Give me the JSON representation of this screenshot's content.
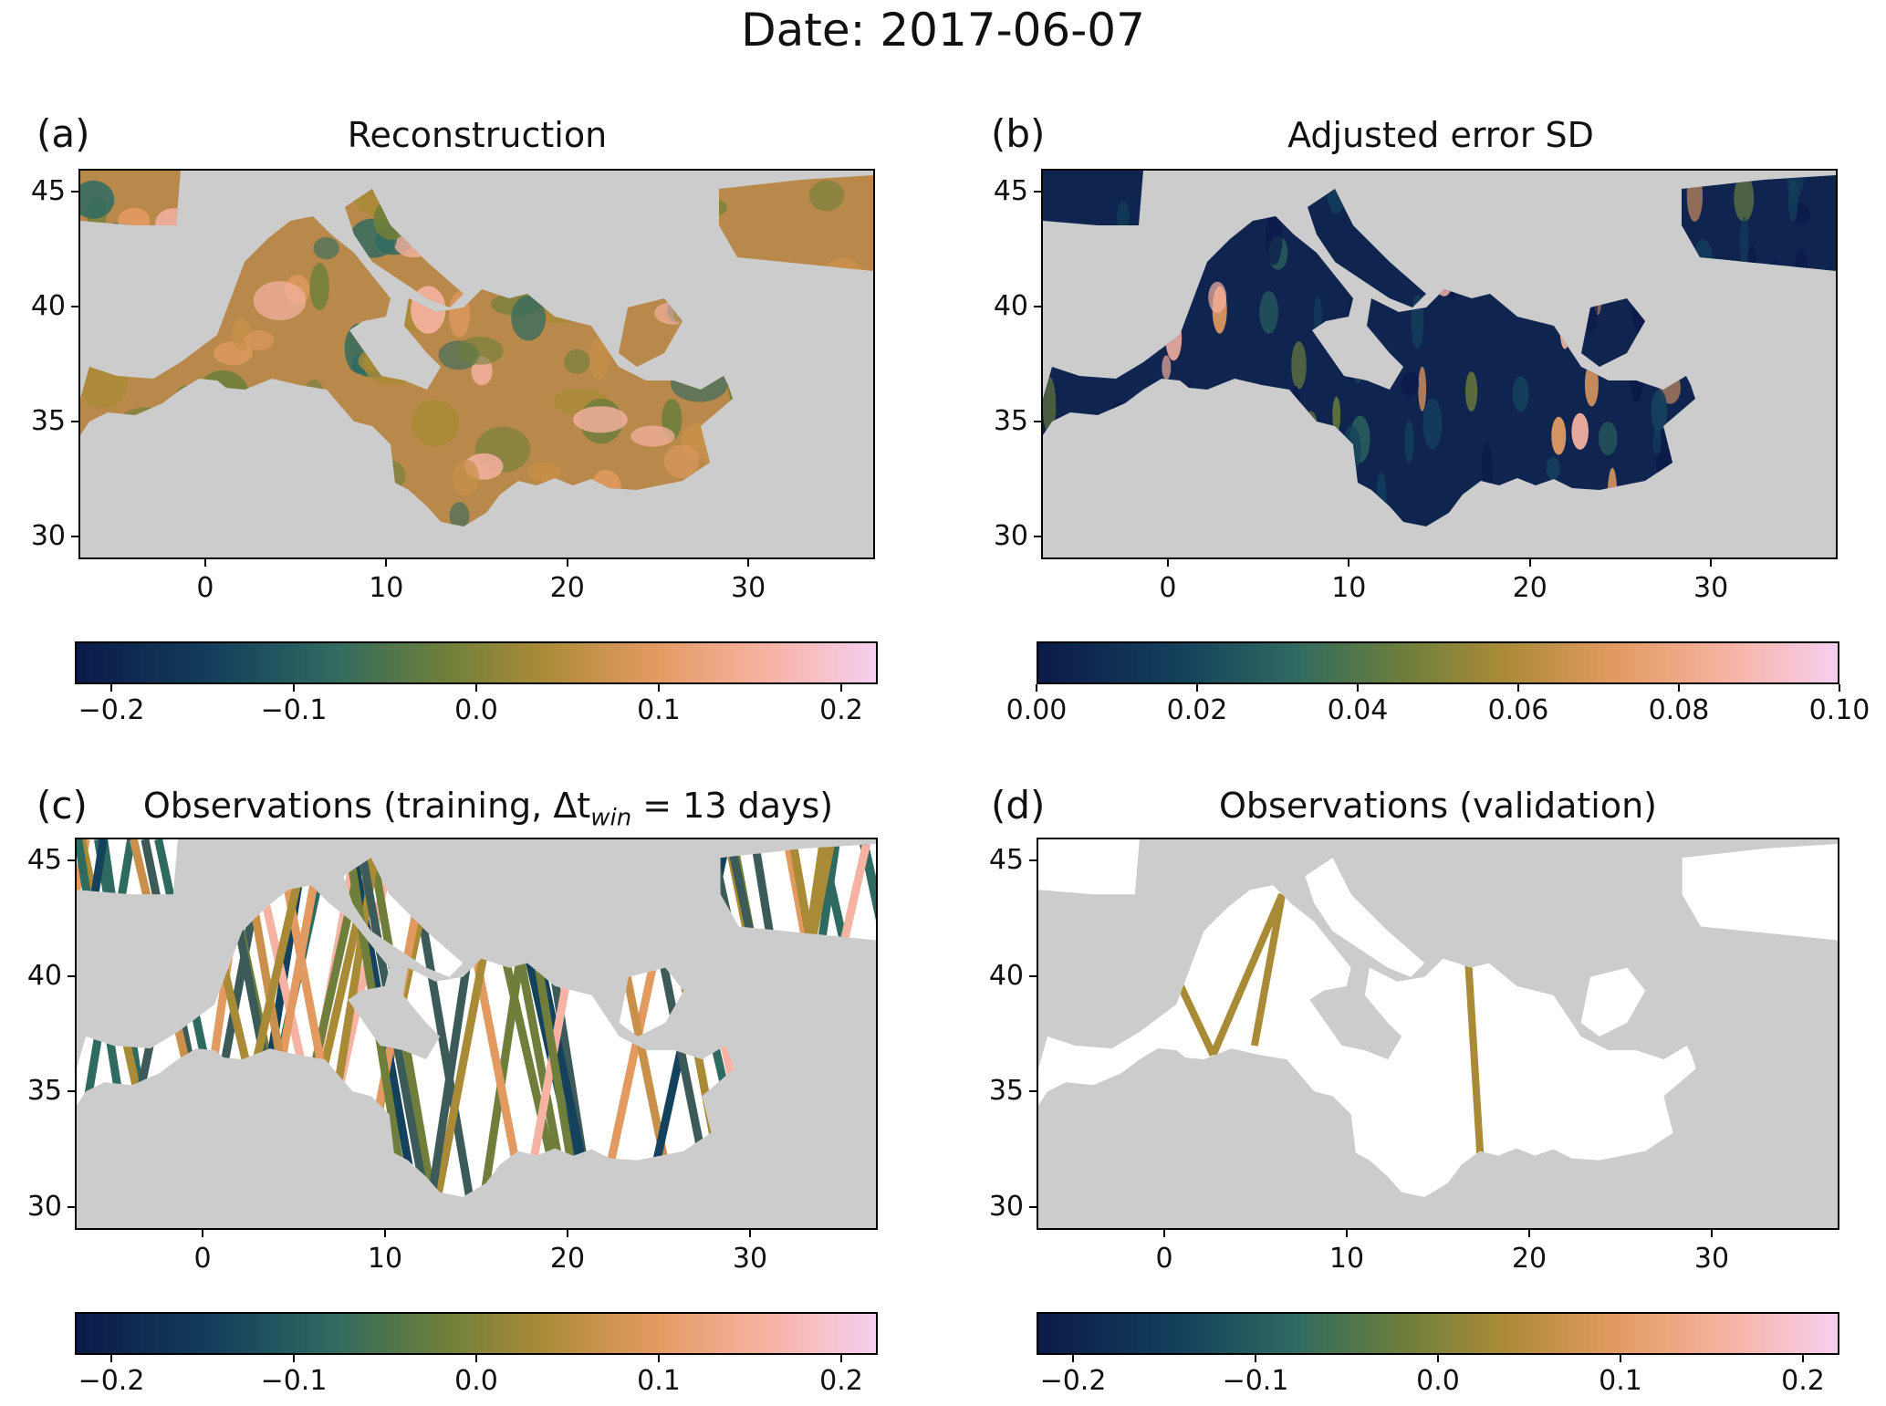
{
  "figure_title": "Date: 2017-06-07",
  "colormap": [
    "#0b1a49",
    "#14415c",
    "#2f6a60",
    "#6f7f3b",
    "#a98a36",
    "#e29a60",
    "#f6b2a2",
    "#f6cff0"
  ],
  "land_color": "#cccccc",
  "sea_color": "#ffffff",
  "x_ticks": [
    "0",
    "10",
    "20",
    "30"
  ],
  "y_ticks": [
    "45",
    "40",
    "35",
    "30"
  ],
  "panels": [
    {
      "label": "(a)",
      "title": "Reconstruction",
      "colorbar_ticks": [
        "−0.2",
        "−0.1",
        "0.0",
        "0.1",
        "0.2"
      ]
    },
    {
      "label": "(b)",
      "title": "Adjusted error SD",
      "colorbar_ticks": [
        "0.00",
        "0.02",
        "0.04",
        "0.06",
        "0.08",
        "0.10"
      ]
    },
    {
      "label": "(c)",
      "title_prefix": "Observations (training, Δt",
      "title_sub": "win",
      "title_suffix": " = 13 days)",
      "colorbar_ticks": [
        "−0.2",
        "−0.1",
        "0.0",
        "0.1",
        "0.2"
      ]
    },
    {
      "label": "(d)",
      "title": "Observations (validation)",
      "colorbar_ticks": [
        "−0.2",
        "−0.1",
        "0.0",
        "0.1",
        "0.2"
      ]
    }
  ],
  "chart_data": {
    "type": "heatmap",
    "region": "Mediterranean Sea",
    "xlim": [
      -7,
      37
    ],
    "ylim": [
      29,
      46
    ],
    "panels": [
      {
        "title": "Reconstruction",
        "colorbar_range": [
          -0.22,
          0.22
        ]
      },
      {
        "title": "Adjusted error SD",
        "colorbar_range": [
          0.0,
          0.1
        ]
      },
      {
        "title": "Observations (training, Δt_win = 13 days)",
        "colorbar_range": [
          -0.22,
          0.22
        ]
      },
      {
        "title": "Observations (validation)",
        "colorbar_range": [
          -0.22,
          0.22
        ]
      }
    ]
  }
}
